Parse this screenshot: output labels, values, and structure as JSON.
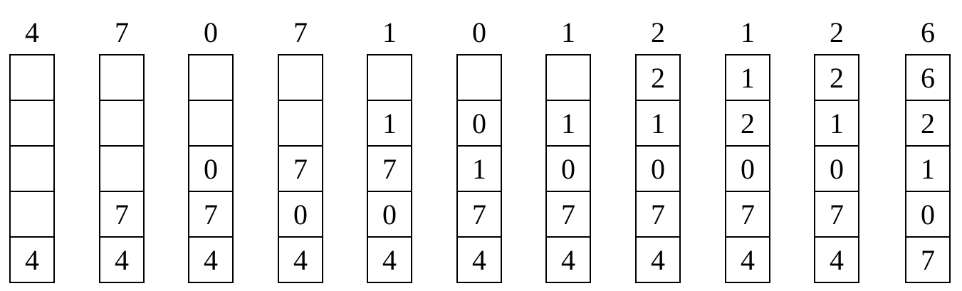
{
  "columns": [
    {
      "ref": "4",
      "cells": [
        "",
        "",
        "",
        "",
        "4"
      ]
    },
    {
      "ref": "7",
      "cells": [
        "",
        "",
        "",
        "7",
        "4"
      ]
    },
    {
      "ref": "0",
      "cells": [
        "",
        "",
        "0",
        "7",
        "4"
      ]
    },
    {
      "ref": "7",
      "cells": [
        "",
        "",
        "7",
        "0",
        "4"
      ]
    },
    {
      "ref": "1",
      "cells": [
        "",
        "1",
        "7",
        "0",
        "4"
      ]
    },
    {
      "ref": "0",
      "cells": [
        "",
        "0",
        "1",
        "7",
        "4"
      ]
    },
    {
      "ref": "1",
      "cells": [
        "",
        "1",
        "0",
        "7",
        "4"
      ]
    },
    {
      "ref": "2",
      "cells": [
        "2",
        "1",
        "0",
        "7",
        "4"
      ]
    },
    {
      "ref": "1",
      "cells": [
        "1",
        "2",
        "0",
        "7",
        "4"
      ]
    },
    {
      "ref": "2",
      "cells": [
        "2",
        "1",
        "0",
        "7",
        "4"
      ]
    },
    {
      "ref": "6",
      "cells": [
        "6",
        "2",
        "1",
        "0",
        "7"
      ]
    }
  ]
}
